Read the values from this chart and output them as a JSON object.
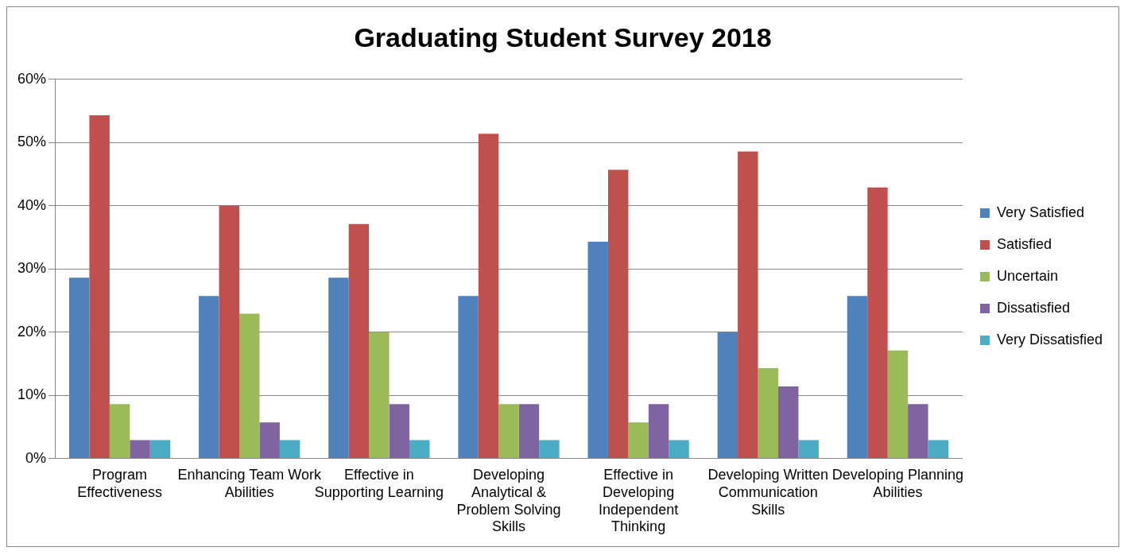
{
  "chart_data": {
    "type": "bar",
    "title": "Graduating Student Survey 2018",
    "categories": [
      "Program Effectiveness",
      "Enhancing Team Work Abilities",
      "Effective in Supporting Learning",
      "Developing Analytical & Problem Solving Skills",
      "Effective in Developing Independent Thinking",
      "Developing Written Communication Skills",
      "Developing Planning Abilities"
    ],
    "series": [
      {
        "name": "Very Satisfied",
        "color": "#4f81bd",
        "values": [
          28.6,
          25.7,
          28.6,
          25.7,
          34.3,
          20.0,
          25.7
        ]
      },
      {
        "name": "Satisfied",
        "color": "#c0504d",
        "values": [
          54.3,
          40.0,
          37.1,
          51.4,
          45.7,
          48.6,
          42.9
        ]
      },
      {
        "name": "Uncertain",
        "color": "#9bbb59",
        "values": [
          8.6,
          22.9,
          20.0,
          8.6,
          5.7,
          14.3,
          17.1
        ]
      },
      {
        "name": "Dissatisfied",
        "color": "#8064a2",
        "values": [
          2.9,
          5.7,
          8.6,
          8.6,
          8.6,
          11.4,
          8.6
        ]
      },
      {
        "name": "Very Dissatisfied",
        "color": "#4bacc6",
        "values": [
          2.9,
          2.9,
          2.9,
          2.9,
          2.9,
          2.9,
          2.9
        ]
      }
    ],
    "ylim": [
      0,
      60
    ],
    "yticks": [
      {
        "value": 0,
        "label": "0%"
      },
      {
        "value": 10,
        "label": "10%"
      },
      {
        "value": 20,
        "label": "20%"
      },
      {
        "value": 30,
        "label": "30%"
      },
      {
        "value": 40,
        "label": "40%"
      },
      {
        "value": 50,
        "label": "50%"
      },
      {
        "value": 60,
        "label": "60%"
      }
    ],
    "grid": "y",
    "legend": "right"
  }
}
